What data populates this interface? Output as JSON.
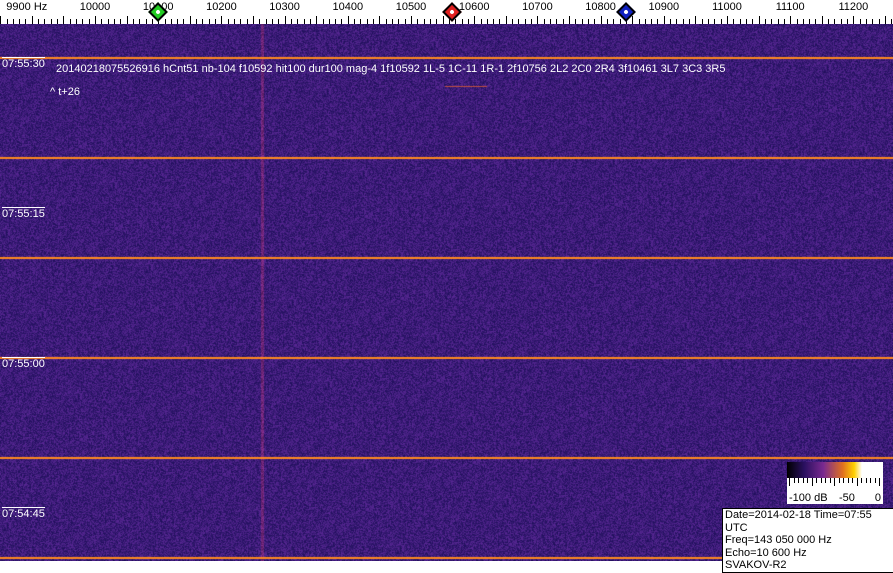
{
  "frequency_scale": {
    "labels": [
      "9900 Hz",
      "10000",
      "10100",
      "10200",
      "10300",
      "10400",
      "10500",
      "10600",
      "10700",
      "10800",
      "10900",
      "11000",
      "11100",
      "11200"
    ],
    "markers": [
      {
        "name": "green",
        "freq": 10100,
        "color": "#22cc22"
      },
      {
        "name": "red",
        "freq": 10565,
        "color": "#e02020"
      },
      {
        "name": "blue",
        "freq": 10840,
        "color": "#1020c0"
      }
    ]
  },
  "waterfall": {
    "time_labels": [
      "07:55:30",
      "07:55:15",
      "07:55:00",
      "07:54:45"
    ],
    "detection_text": "20140218075526916 hCnt51 nb-104 f10592 hit100 dur100 mag-4 1f10592 1L-5 1C-11 1R-1 2f10756 2L2 2C0 2R4 3f10461 3L7 3C3 3R5",
    "offset_text": "^ t+26",
    "background_color": "#2a1a70",
    "line_color": "#ff8a20"
  },
  "colorbar": {
    "labels": [
      "-100 dB",
      "-50",
      "0"
    ]
  },
  "info": {
    "line1": "Date=2014-02-18 Time=07:55 UTC",
    "line2": "Freq=143 050 000 Hz",
    "line3": "Echo=10 600 Hz",
    "line4": "SVAKOV-R2"
  }
}
